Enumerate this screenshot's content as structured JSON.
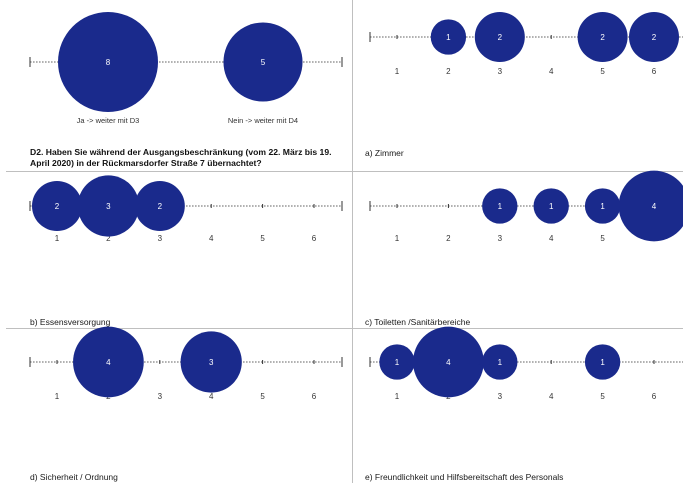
{
  "colors": {
    "bubble": "#1a2a8c",
    "axis": "#333333",
    "border": "#bfbfbf"
  },
  "question_text": "D2. Haben Sie während der Ausgangsbeschränkung (vom 22. März bis 19. April 2020) in der Rückmarsdorfer Straße 7 übernachtet?",
  "chart_data": [
    {
      "id": "d2",
      "type": "bubble",
      "categories": [
        "Ja -> weiter mit D3",
        "Nein -> weiter mit D4"
      ],
      "values": [
        8,
        5
      ],
      "caption": ""
    },
    {
      "id": "a",
      "type": "bubble",
      "categories": [
        "1",
        "2",
        "3",
        "4",
        "5",
        "6"
      ],
      "values": [
        0,
        1,
        2,
        0,
        2,
        2
      ],
      "caption": "a) Zimmer"
    },
    {
      "id": "b",
      "type": "bubble",
      "categories": [
        "1",
        "2",
        "3",
        "4",
        "5",
        "6"
      ],
      "values": [
        2,
        3,
        2,
        0,
        0,
        0
      ],
      "caption": "b) Essensversorgung"
    },
    {
      "id": "c",
      "type": "bubble",
      "categories": [
        "1",
        "2",
        "3",
        "4",
        "5",
        "6"
      ],
      "values": [
        0,
        0,
        1,
        1,
        1,
        4
      ],
      "caption": "c) Toiletten /Sanitärbereiche"
    },
    {
      "id": "d",
      "type": "bubble",
      "categories": [
        "1",
        "2",
        "3",
        "4",
        "5",
        "6"
      ],
      "values": [
        0,
        4,
        0,
        3,
        0,
        0
      ],
      "caption": "d) Sicherheit / Ordnung"
    },
    {
      "id": "e",
      "type": "bubble",
      "categories": [
        "1",
        "2",
        "3",
        "4",
        "5",
        "6"
      ],
      "values": [
        1,
        4,
        1,
        0,
        1,
        0
      ],
      "caption": "e) Freundlichkeit und Hilfsbereitschaft des Personals"
    }
  ]
}
